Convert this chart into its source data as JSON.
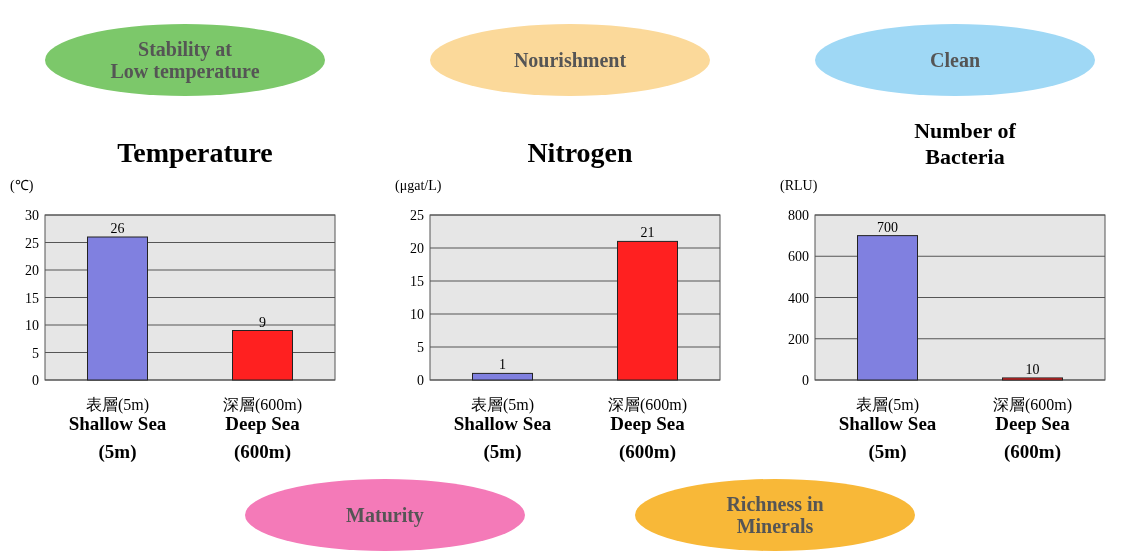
{
  "chart_data": [
    {
      "type": "bar",
      "title": "Temperature",
      "ylabel": "(℃)",
      "annotations": [
        "Stability at\nLow temperature"
      ],
      "categories": [
        "表層(5m)\nShallow Sea\n(5m)",
        "深層(600m)\nDeep Sea\n(600m)"
      ],
      "values": [
        26,
        9
      ],
      "colors": [
        "#8080e0",
        "#ff2020"
      ],
      "ylim": [
        0,
        30
      ],
      "yticks": [
        0,
        5,
        10,
        15,
        20,
        25,
        30
      ],
      "grid": "y",
      "data_labels": true
    },
    {
      "type": "bar",
      "title": "Nitrogen",
      "ylabel": "(μgat/L)",
      "annotations": [
        "Nourishment"
      ],
      "categories": [
        "表層(5m)\nShallow Sea\n(5m)",
        "深層(600m)\nDeep Sea\n(600m)"
      ],
      "values": [
        1,
        21
      ],
      "colors": [
        "#8080e0",
        "#ff2020"
      ],
      "ylim": [
        0,
        25
      ],
      "yticks": [
        0,
        5,
        10,
        15,
        20,
        25
      ],
      "grid": "y",
      "data_labels": true
    },
    {
      "type": "bar",
      "title": "Number of\nBacteria",
      "ylabel": "(RLU)",
      "annotations": [
        "Clean"
      ],
      "categories": [
        "表層(5m)\nShallow Sea\n(5m)",
        "深層(600m)\nDeep Sea\n(600m)"
      ],
      "values": [
        700,
        10
      ],
      "colors": [
        "#8080e0",
        "#ff2020"
      ],
      "ylim": [
        0,
        800
      ],
      "yticks": [
        0,
        200,
        400,
        600,
        800
      ],
      "grid": "y",
      "data_labels": true
    },
    {
      "type": "other",
      "annotations": [
        "Maturity",
        "Richness in\nMinerals"
      ]
    }
  ]
}
